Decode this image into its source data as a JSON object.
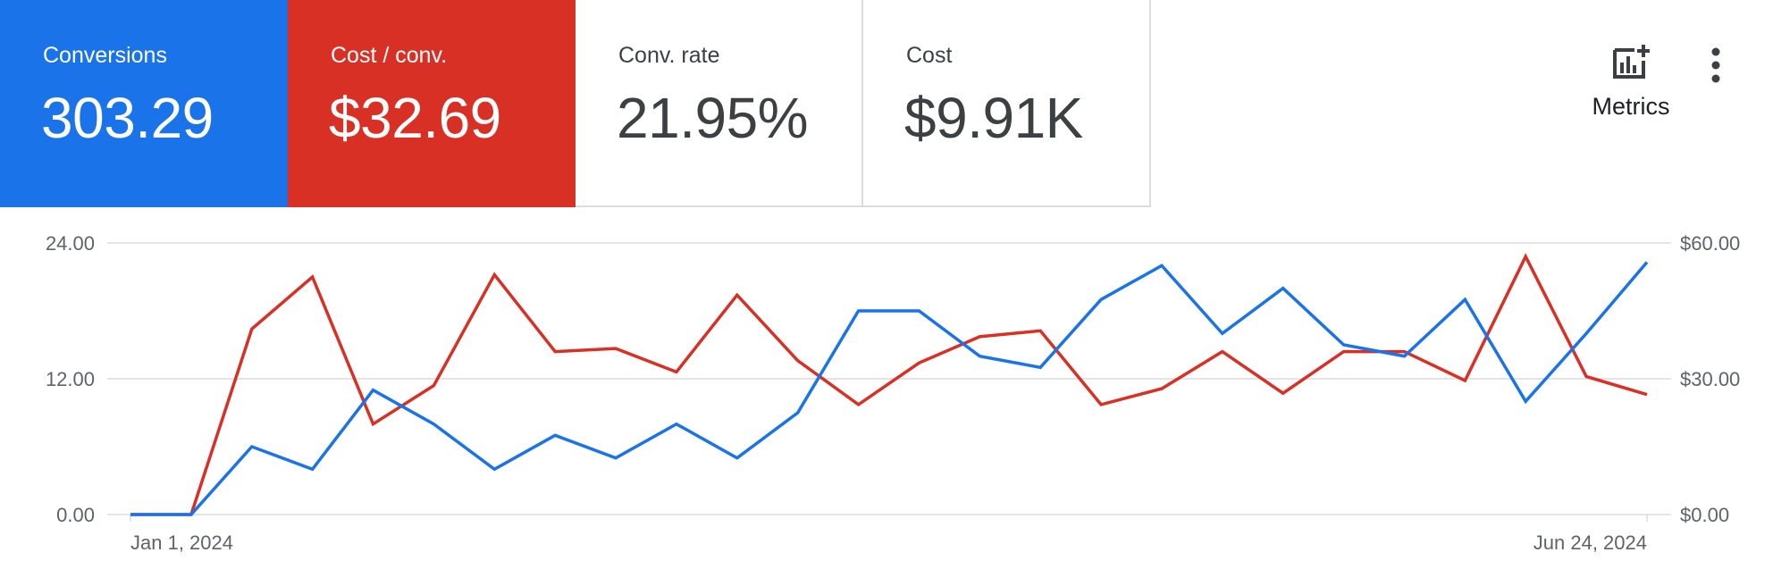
{
  "scorecards": [
    {
      "label": "Conversions",
      "value": "303.29",
      "style": "blue"
    },
    {
      "label": "Cost / conv.",
      "value": "$32.69",
      "style": "red"
    },
    {
      "label": "Conv. rate",
      "value": "21.95%",
      "style": "plain"
    },
    {
      "label": "Cost",
      "value": "$9.91K",
      "style": "plain"
    }
  ],
  "toolbar": {
    "metrics_label": "Metrics",
    "metrics_icon": "add-chart-icon",
    "more_icon": "more-vert-icon"
  },
  "colors": {
    "blue": "#1a73e8",
    "red": "#d93025",
    "grid": "#dadce0",
    "axis_text": "#5f6368"
  },
  "chart_data": {
    "type": "line",
    "x_start_label": "Jan 1, 2024",
    "x_end_label": "Jun 24, 2024",
    "y_left": {
      "ticks": [
        "24.00",
        "12.00",
        "0.00"
      ],
      "range": [
        0,
        24
      ]
    },
    "y_right": {
      "ticks": [
        "$60.00",
        "$30.00",
        "$0.00"
      ],
      "range": [
        0,
        60
      ]
    },
    "grid": true,
    "series": [
      {
        "name": "Conversions",
        "axis": "left",
        "color": "#1a73e8",
        "values": [
          0,
          0,
          6,
          4,
          11,
          8,
          4,
          7,
          5,
          8,
          5,
          9,
          18,
          18,
          14,
          13,
          19,
          22,
          16,
          20,
          15,
          14,
          19,
          10,
          16,
          22.3
        ]
      },
      {
        "name": "Cost / conv.",
        "axis": "right",
        "color": "#d93025",
        "values": [
          0,
          0,
          41,
          52.5,
          20,
          28.5,
          53,
          36,
          36.7,
          31.5,
          48.5,
          34,
          24.3,
          33.5,
          39.3,
          40.6,
          24.3,
          27.8,
          36,
          26.8,
          36,
          36,
          29.6,
          57,
          30.5,
          26.5
        ]
      }
    ]
  }
}
